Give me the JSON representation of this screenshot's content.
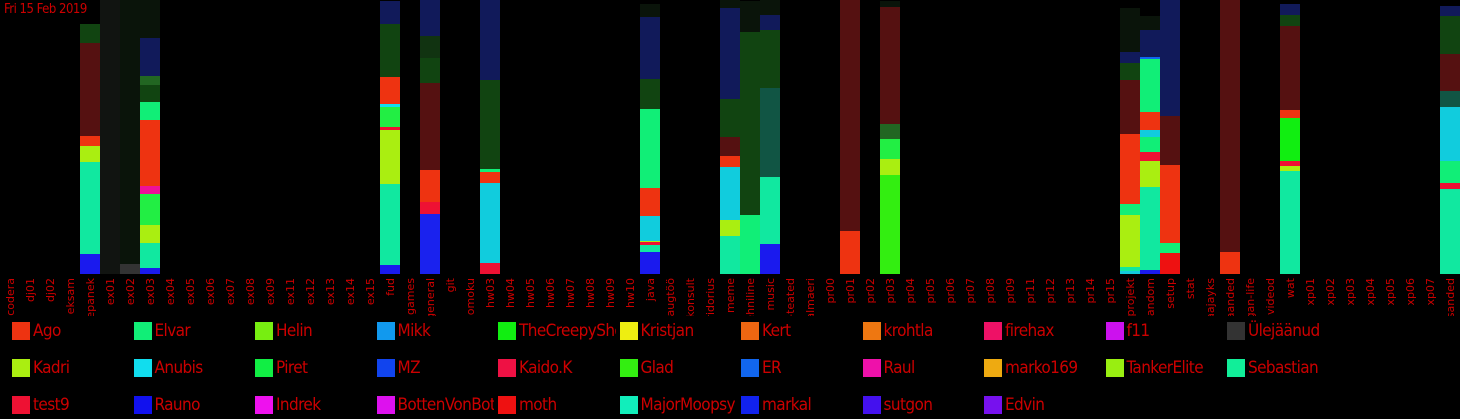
{
  "chart_data": {
    "type": "bar",
    "title": "Fri 15 Feb 2019",
    "stacked": true,
    "categories": [
      "codera",
      "dj01",
      "dj02",
      "eksam",
      "ettepanek",
      "ex01",
      "ex02",
      "ex03",
      "ex04",
      "ex05",
      "ex06",
      "ex07",
      "ex08",
      "ex09",
      "ex11",
      "ex12",
      "ex13",
      "ex14",
      "ex15",
      "fud",
      "games",
      "general",
      "git",
      "gomoku",
      "hw03",
      "hw04",
      "hw05",
      "hw06",
      "hw07",
      "hw08",
      "hw09",
      "hw10",
      "java",
      "kaugtöö",
      "konsult",
      "koridorius",
      "meme",
      "mittetehniline",
      "music",
      "olulised-teated",
      "palmaeri",
      "pr00",
      "pr01",
      "pr02",
      "pr03",
      "pr04",
      "pr05",
      "pr06",
      "pr07",
      "pr08",
      "pr09",
      "pr11",
      "pr12",
      "pr13",
      "pr14",
      "pr15",
      "projekt",
      "random",
      "setup",
      "stat",
      "syvaajayks",
      "teadaanded",
      "vegan-life",
      "videod",
      "wat",
      "xp01",
      "xp02",
      "xp03",
      "xp04",
      "xp05",
      "xp06",
      "xp07",
      "ülesanded"
    ],
    "legend_position": "bottom",
    "grid": false,
    "series": [
      {
        "name": "Ago",
        "color": "#ee3311"
      },
      {
        "name": "Elvar",
        "color": "#11ee77"
      },
      {
        "name": "Helin",
        "color": "#77ee11"
      },
      {
        "name": "Mikk",
        "color": "#1199ee"
      },
      {
        "name": "TheCreepySheep",
        "color": "#11ee11"
      },
      {
        "name": "Kristjan",
        "color": "#eeee11"
      },
      {
        "name": "Kert",
        "color": "#ee6611"
      },
      {
        "name": "krohtla",
        "color": "#ee7711"
      },
      {
        "name": "firehax",
        "color": "#ee1166"
      },
      {
        "name": "f11",
        "color": "#cc11ee"
      },
      {
        "name": "Ülejäänud",
        "color": "#333333"
      },
      {
        "name": "Kadri",
        "color": "#aaee11"
      },
      {
        "name": "Anubis",
        "color": "#11ddee"
      },
      {
        "name": "Piret",
        "color": "#11ee44"
      },
      {
        "name": "MZ",
        "color": "#1144ee"
      },
      {
        "name": "Kaido.K",
        "color": "#ee1144"
      },
      {
        "name": "Glad",
        "color": "#33ee11"
      },
      {
        "name": "ER",
        "color": "#1166ee"
      },
      {
        "name": "Raul",
        "color": "#ee11aa"
      },
      {
        "name": "marko169",
        "color": "#eeaa11"
      },
      {
        "name": "TankerElite",
        "color": "#99ee11"
      },
      {
        "name": "Sebastian",
        "color": "#11ee99"
      },
      {
        "name": "test9",
        "color": "#ee1133"
      },
      {
        "name": "Rauno",
        "color": "#1111ee"
      },
      {
        "name": "Indrek",
        "color": "#ee11ee"
      },
      {
        "name": "BottenVonBottom",
        "color": "#dd11ee"
      },
      {
        "name": "moth",
        "color": "#ee1111"
      },
      {
        "name": "MajorMoopsy",
        "color": "#11eebb"
      },
      {
        "name": "markal",
        "color": "#1122ee"
      },
      {
        "name": "sutgon",
        "color": "#4411ee"
      },
      {
        "name": "Edvin",
        "color": "#7711ee"
      }
    ],
    "bars": [
      {
        "category": "ettepanek",
        "segments": [
          [
            "#1a1aee",
            20
          ],
          [
            "#11e8a0",
            92
          ],
          [
            "#aaee11",
            16
          ],
          [
            "#ee3311",
            10
          ],
          [
            "#551111",
            93
          ],
          [
            "#114411",
            19
          ]
        ]
      },
      {
        "category": "ex01",
        "segments": [
          [
            "#111411",
            274
          ]
        ]
      },
      {
        "category": "ex02",
        "segments": [
          [
            "#333333",
            10
          ],
          [
            "#0a140a",
            264
          ]
        ]
      },
      {
        "category": "ex03",
        "segments": [
          [
            "#1a1aee",
            6
          ],
          [
            "#11e8a0",
            25
          ],
          [
            "#aaee11",
            18
          ],
          [
            "#22ee44",
            31
          ],
          [
            "#ee1199",
            8
          ],
          [
            "#ee3311",
            66
          ],
          [
            "#11ee77",
            18
          ],
          [
            "#114411",
            17
          ],
          [
            "#226622",
            9
          ],
          [
            "#111a5a",
            38
          ],
          [
            "#0a140a",
            38
          ]
        ]
      },
      {
        "category": "fud",
        "segments": [
          [
            "#1a1aee",
            9
          ],
          [
            "#11e8a0",
            81
          ],
          [
            "#aaee11",
            54
          ],
          [
            "#ee1133",
            3
          ],
          [
            "#22ee44",
            20
          ],
          [
            "#11ddee",
            3
          ],
          [
            "#ee3311",
            27
          ],
          [
            "#114411",
            53
          ],
          [
            "#111a5a",
            23
          ]
        ]
      },
      {
        "category": "general",
        "segments": [
          [
            "#1a22ee",
            60
          ],
          [
            "#ee1133",
            12
          ],
          [
            "#ee3311",
            32
          ],
          [
            "#551111",
            87
          ],
          [
            "#114411",
            25
          ],
          [
            "#113311",
            22
          ],
          [
            "#111a5a",
            36
          ]
        ]
      },
      {
        "category": "hw03",
        "segments": [
          [
            "#ee1133",
            11
          ],
          [
            "#11ccdd",
            80
          ],
          [
            "#ee3311",
            11
          ],
          [
            "#11ee77",
            3
          ],
          [
            "#114411",
            89
          ],
          [
            "#111a5a",
            80
          ]
        ]
      },
      {
        "category": "java",
        "segments": [
          [
            "#1a1aee",
            22
          ],
          [
            "#11e8a0",
            7
          ],
          [
            "#ee1133",
            3
          ],
          [
            "#aaee11",
            1
          ],
          [
            "#11ccdd",
            25
          ],
          [
            "#ee3311",
            28
          ],
          [
            "#11ee77",
            79
          ],
          [
            "#114411",
            30
          ],
          [
            "#111a5a",
            62
          ],
          [
            "#0a140a",
            13
          ]
        ]
      },
      {
        "category": "meme",
        "segments": [
          [
            "#11e8a0",
            38
          ],
          [
            "#aaee11",
            16
          ],
          [
            "#11ccdd",
            53
          ],
          [
            "#ee3311",
            11
          ],
          [
            "#551111",
            19
          ],
          [
            "#114411",
            38
          ],
          [
            "#111a5a",
            91
          ],
          [
            "#0a140a",
            8
          ]
        ]
      },
      {
        "category": "mittetehniline",
        "segments": [
          [
            "#11ee77",
            59
          ],
          [
            "#114411",
            183
          ],
          [
            "#0a140a",
            31
          ]
        ]
      },
      {
        "category": "music",
        "segments": [
          [
            "#1a1aee",
            30
          ],
          [
            "#11e8a0",
            67
          ],
          [
            "#115544",
            89
          ],
          [
            "#114411",
            58
          ],
          [
            "#111a5a",
            15
          ],
          [
            "#0a140a",
            15
          ]
        ]
      },
      {
        "category": "pr01",
        "segments": [
          [
            "#ee3311",
            43
          ],
          [
            "#551111",
            231
          ]
        ]
      },
      {
        "category": "pr03",
        "segments": [
          [
            "#33ee11",
            99
          ],
          [
            "#aaee11",
            16
          ],
          [
            "#22ee44",
            20
          ],
          [
            "#226622",
            15
          ],
          [
            "#551111",
            117
          ],
          [
            "#0a140a",
            6
          ]
        ]
      },
      {
        "category": "projekt",
        "segments": [
          [
            "#11ccdd",
            3
          ],
          [
            "#11e8a0",
            4
          ],
          [
            "#aaee11",
            52
          ],
          [
            "#11ee77",
            11
          ],
          [
            "#ee3311",
            70
          ],
          [
            "#551111",
            54
          ],
          [
            "#114411",
            17
          ],
          [
            "#111a5a",
            11
          ],
          [
            "#0a140a",
            44
          ]
        ]
      },
      {
        "category": "random",
        "segments": [
          [
            "#1a1aee",
            4
          ],
          [
            "#11e8a0",
            83
          ],
          [
            "#aaee11",
            26
          ],
          [
            "#ee1133",
            9
          ],
          [
            "#11ee77",
            15
          ],
          [
            "#11ccdd",
            7
          ],
          [
            "#ee3311",
            18
          ],
          [
            "#11ee77",
            53
          ],
          [
            "#1166ee",
            2
          ],
          [
            "#111a5a",
            27
          ],
          [
            "#0a140a",
            14
          ]
        ]
      },
      {
        "category": "setup",
        "segments": [
          [
            "#ee1111",
            21
          ],
          [
            "#11ee77",
            10
          ],
          [
            "#ee3311",
            78
          ],
          [
            "#551111",
            49
          ],
          [
            "#111a5a",
            116
          ]
        ]
      },
      {
        "category": "teadaanded",
        "segments": [
          [
            "#ee3311",
            22
          ],
          [
            "#551111",
            252
          ]
        ]
      },
      {
        "category": "wat",
        "segments": [
          [
            "#11e8a0",
            103
          ],
          [
            "#aaee11",
            5
          ],
          [
            "#ee1133",
            5
          ],
          [
            "#11ee11",
            43
          ],
          [
            "#ee3311",
            8
          ],
          [
            "#551111",
            84
          ],
          [
            "#114411",
            11
          ],
          [
            "#111a5a",
            11
          ]
        ]
      },
      {
        "category": "ülesanded",
        "segments": [
          [
            "#11e8a0",
            85
          ],
          [
            "#ee1133",
            6
          ],
          [
            "#11ee77",
            22
          ],
          [
            "#11ccdd",
            54
          ],
          [
            "#115544",
            16
          ],
          [
            "#551111",
            37
          ],
          [
            "#114411",
            38
          ],
          [
            "#111a5a",
            10
          ]
        ]
      }
    ]
  }
}
